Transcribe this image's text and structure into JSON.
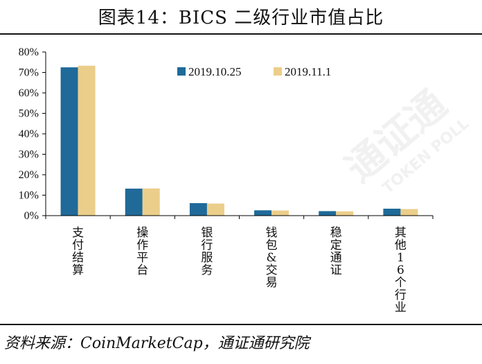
{
  "title": "图表14：BICS 二级行业市值占比",
  "source": "资料来源：CoinMarketCap，通证通研究院",
  "colors": {
    "series1": "#1f6a99",
    "series2": "#ecce8b",
    "axis": "#000000"
  },
  "watermark": {
    "text": "通证通",
    "subtext": "TOKEN POLL"
  },
  "chart_data": {
    "type": "bar",
    "categories": [
      "支付结算",
      "操作平台",
      "银行服务",
      "钱包&交易",
      "稳定通证",
      "其他16个行业"
    ],
    "series": [
      {
        "name": "2019.10.25",
        "values": [
          72.5,
          13.2,
          6.1,
          2.6,
          2.2,
          3.4
        ]
      },
      {
        "name": "2019.11.1",
        "values": [
          73.3,
          13.3,
          5.9,
          2.5,
          2.1,
          3.2
        ]
      }
    ],
    "ylim": [
      0,
      80
    ],
    "yticks": [
      "0%",
      "10%",
      "20%",
      "30%",
      "40%",
      "50%",
      "60%",
      "70%",
      "80%"
    ],
    "legend_position": "top-right",
    "grid": false
  }
}
